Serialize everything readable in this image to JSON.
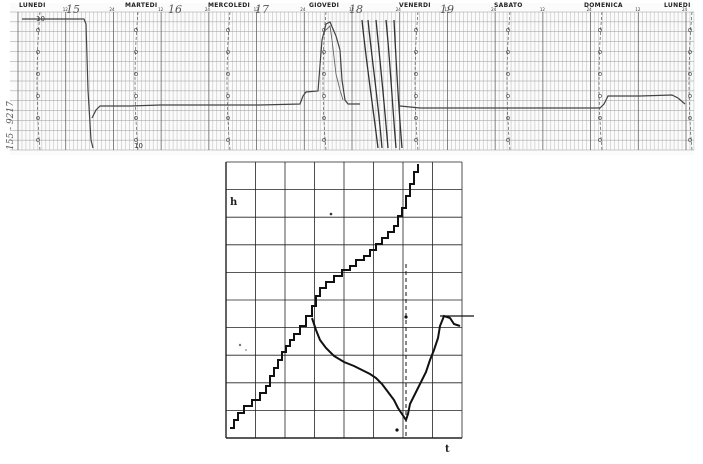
{
  "recorder_chart": {
    "days": [
      {
        "name": "LUNEDI",
        "note": "15"
      },
      {
        "name": "MARTEDI",
        "note": "16"
      },
      {
        "name": "MERCOLEDI",
        "note": "17"
      },
      {
        "name": "GIOVEDI",
        "note": "18"
      },
      {
        "name": "VENERDI",
        "note": "19"
      },
      {
        "name": "SABATO",
        "note": ""
      },
      {
        "name": "DOMENICA",
        "note": ""
      },
      {
        "name": "LUNEDI",
        "note": ""
      }
    ],
    "hour_labels": [
      "12",
      "24"
    ],
    "scale_labels": [
      "10",
      "10"
    ],
    "side_note": "155 - 9217",
    "colors": {
      "ink": "#555555",
      "trace": "#333333",
      "grid": "#9a9a9a"
    }
  },
  "staircase_chart": {
    "y_axis_label": "h",
    "x_axis_label": "t",
    "colors": {
      "line": "#111111",
      "grid": "#222222"
    }
  }
}
